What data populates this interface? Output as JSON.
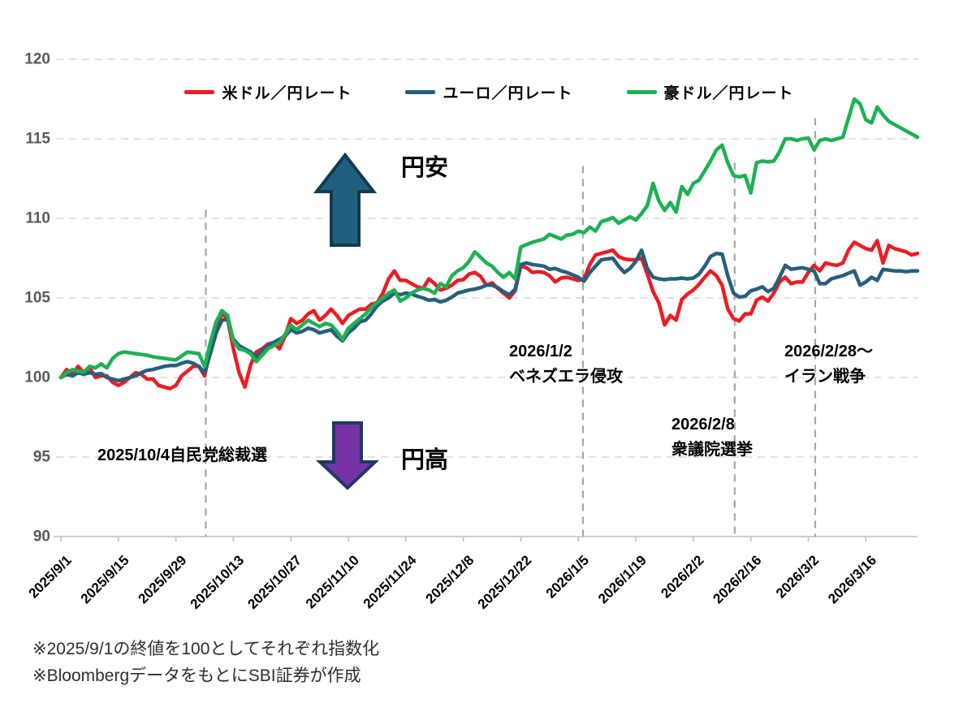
{
  "legend": [
    {
      "label": "米ドル／円レート",
      "color": "#EC1C24",
      "id": "usd-jpy-line"
    },
    {
      "label": "ユーロ／円レート",
      "color": "#265F7C",
      "id": "eur-jpy-line"
    },
    {
      "label": "豪ドル／円レート",
      "color": "#1DB153",
      "id": "aud-jpy-line"
    }
  ],
  "chart_data": {
    "type": "line",
    "title": "",
    "xlabel": "",
    "ylabel": "",
    "ylim": [
      90,
      120
    ],
    "yticks": [
      90,
      95,
      100,
      105,
      110,
      115,
      120
    ],
    "grid": "horizontal-dashed",
    "legend_position": "top-center",
    "categories": [
      "2025/9/1",
      "2025/9/15",
      "2025/9/29",
      "2025/10/13",
      "2025/10/27",
      "2025/11/10",
      "2025/11/24",
      "2025/12/8",
      "2025/12/22",
      "2026/1/5",
      "2026/1/19",
      "2026/2/2",
      "2026/2/16",
      "2026/3/2",
      "2026/3/16"
    ],
    "category_indices": [
      0,
      10,
      20,
      30,
      40,
      50,
      60,
      70,
      80,
      90,
      100,
      110,
      120,
      130,
      140
    ],
    "colors": {
      "grid": "#D9D9D9",
      "axis": "#BFBFBF",
      "ytick": "#595959",
      "xtick": "#000000",
      "event": "#A6A6A6"
    },
    "series": [
      {
        "name": "米ドル／円レート",
        "id": "usd-jpy-line",
        "color": "#EC1C24",
        "values": [
          100,
          100.5,
          100.2,
          100.7,
          100.3,
          100.6,
          100,
          100.1,
          100.1,
          99.7,
          99.5,
          99.7,
          100,
          100.3,
          100.2,
          99.9,
          99.9,
          99.5,
          99.4,
          99.3,
          99.5,
          100.1,
          100.4,
          100.7,
          100.7,
          100.1,
          101.8,
          103.2,
          104,
          103.7,
          101.8,
          100.3,
          99.4,
          100.8,
          101.6,
          101.8,
          102.1,
          102.2,
          101.8,
          102.6,
          103.7,
          103.4,
          103.6,
          104,
          104.2,
          103.6,
          103.9,
          104.3,
          103.9,
          103.4,
          103.9,
          104.1,
          104.3,
          104.3,
          104.6,
          104.7,
          105.3,
          106.2,
          106.7,
          106.1,
          106.1,
          105.9,
          105.7,
          105.6,
          106.2,
          105.9,
          105.5,
          105.6,
          105.8,
          106.1,
          106.15,
          106.5,
          106.6,
          106.35,
          105.8,
          105.95,
          105.6,
          105.3,
          105,
          105.45,
          107,
          106.9,
          106.6,
          106.65,
          106.6,
          106.4,
          106,
          106.25,
          106.3,
          106.2,
          106.1,
          106.2,
          107.1,
          107.7,
          107.8,
          107.9,
          108,
          107.6,
          107.45,
          107.4,
          107.4,
          107.5,
          106.5,
          105.4,
          104.7,
          103.3,
          103.9,
          103.6,
          104.9,
          105.25,
          105.5,
          105.85,
          106.3,
          106.7,
          106.4,
          105.8,
          104.3,
          103.7,
          103.55,
          104,
          104,
          104.85,
          105.05,
          104.8,
          105.3,
          106,
          106.3,
          105.9,
          106,
          106,
          106.6,
          107.05,
          106.7,
          107.2,
          107.1,
          107.05,
          107.2,
          108,
          108.5,
          108.3,
          108.1,
          108,
          108.6,
          107.2,
          108.3,
          108.1,
          108,
          107.9,
          107.7,
          107.8
        ]
      },
      {
        "name": "ユーロ／円レート",
        "id": "eur-jpy-line",
        "color": "#265F7C",
        "values": [
          100,
          100.2,
          100.1,
          100.3,
          100.2,
          100.3,
          100.2,
          100.25,
          100,
          99.9,
          99.8,
          99.9,
          100,
          100.1,
          100.3,
          100.45,
          100.5,
          100.6,
          100.7,
          100.75,
          100.75,
          100.9,
          101,
          100.9,
          100.7,
          100.3,
          101.5,
          102.8,
          103.6,
          103.65,
          102.4,
          102,
          101.8,
          101.6,
          101.3,
          101.7,
          102,
          102.2,
          102.4,
          102.6,
          103,
          102.8,
          102.9,
          103.1,
          103,
          102.8,
          102.9,
          103,
          102.6,
          102.3,
          102.8,
          103.1,
          103.5,
          103.6,
          104,
          104.5,
          104.8,
          105,
          105.3,
          105.2,
          105.3,
          105.25,
          105.1,
          105,
          104.85,
          104.9,
          104.75,
          104.85,
          105.05,
          105.3,
          105.4,
          105.5,
          105.55,
          105.65,
          105.8,
          105.8,
          105.65,
          105.4,
          105.2,
          105.55,
          107.1,
          107.2,
          107.1,
          107.05,
          107,
          106.8,
          106.85,
          106.7,
          106.6,
          106.45,
          106.3,
          106.05,
          106.6,
          107,
          107.4,
          107.45,
          107.5,
          107,
          106.6,
          106.85,
          107.3,
          108,
          106.85,
          106.3,
          106.2,
          106.15,
          106.2,
          106.2,
          106.25,
          106.2,
          106.25,
          106.5,
          107,
          107.6,
          107.8,
          107.75,
          106.4,
          105.3,
          105.05,
          105.1,
          105.45,
          105.55,
          105.7,
          105.4,
          105.6,
          106.3,
          107.05,
          106.8,
          106.85,
          106.9,
          106.8,
          106.7,
          105.9,
          105.9,
          106.2,
          106.3,
          106.4,
          106.55,
          106.7,
          105.8,
          106,
          106.3,
          106.1,
          106.8,
          106.75,
          106.7,
          106.7,
          106.65,
          106.7,
          106.7
        ]
      },
      {
        "name": "豪ドル／円レート",
        "id": "aud-jpy-line",
        "color": "#1DB153",
        "values": [
          100,
          100.3,
          100.5,
          100.4,
          100.35,
          100.7,
          100.6,
          100.85,
          100.6,
          101.2,
          101.5,
          101.6,
          101.55,
          101.5,
          101.45,
          101.4,
          101.3,
          101.25,
          101.2,
          101.15,
          101.1,
          101.35,
          101.6,
          101.55,
          101.5,
          100.7,
          102.2,
          103.5,
          104.2,
          103.9,
          102.3,
          101.8,
          101.7,
          101.5,
          101,
          101.4,
          101.8,
          102,
          102.2,
          102.7,
          103.3,
          103,
          103.3,
          103.6,
          103.4,
          103.2,
          103.4,
          103.3,
          102.9,
          102.4,
          103.1,
          103.4,
          103.7,
          104,
          104.4,
          104.7,
          105,
          105.3,
          105.5,
          104.8,
          105,
          105.3,
          105.5,
          105.6,
          105.5,
          105.3,
          105.9,
          105.7,
          106.4,
          106.7,
          106.9,
          107.3,
          107.9,
          107.55,
          107.2,
          107,
          106.6,
          106.3,
          106.6,
          106.2,
          108.2,
          108.35,
          108.5,
          108.6,
          108.7,
          109,
          108.85,
          108.7,
          108.95,
          109,
          109.2,
          109.1,
          109.45,
          109.2,
          109.8,
          109.9,
          110.05,
          109.7,
          109.9,
          110.1,
          109.9,
          110.3,
          110.8,
          112.2,
          111.1,
          110.5,
          111,
          110.4,
          112,
          111.5,
          112.2,
          112.4,
          113,
          113.6,
          114.3,
          114.6,
          113.5,
          112.7,
          112.6,
          112.7,
          111.6,
          113.5,
          113.6,
          113.55,
          113.6,
          114.2,
          115,
          115,
          114.9,
          115,
          115.05,
          114.3,
          114.9,
          115,
          114.9,
          115,
          115.1,
          116.3,
          117.5,
          117.2,
          116.2,
          116,
          117,
          116.5,
          116.1,
          115.9,
          115.7,
          115.5,
          115.3,
          115.1
        ]
      }
    ],
    "events": [
      {
        "label": "2025/10/4自民党総裁選",
        "x_index": 25.2,
        "top_value": 110.55
      },
      {
        "label": "2026/1/2 ベネズエラ侵攻",
        "x_index": 90.8,
        "top_value": 113.3
      },
      {
        "label": "2026/2/8 衆議院選挙",
        "x_index": 117.2,
        "top_value": 113.5
      },
      {
        "label": "2026/2/28〜 イラン戦争",
        "x_index": 131.2,
        "top_value": 116.3
      }
    ]
  },
  "annotations": {
    "yen_weak_label": "円安",
    "yen_strong_label": "円高",
    "up_arrow": {
      "fill": "#20607E",
      "stroke": "#123A52"
    },
    "down_arrow": {
      "fill": "#7533A5",
      "stroke": "#1F3864"
    },
    "event1_line1": "2025/10/4自民党総裁選",
    "event2_line1": "2026/1/2",
    "event2_line2": "ベネズエラ侵攻",
    "event3_line1": "2026/2/8",
    "event3_line2": "衆議院選挙",
    "event4_line1": "2026/2/28〜",
    "event4_line2": "イラン戦争"
  },
  "footnotes": [
    "※2025/9/1の終値を100としてそれぞれ指数化",
    "※BloombergデータをもとにSBI証券が作成"
  ]
}
